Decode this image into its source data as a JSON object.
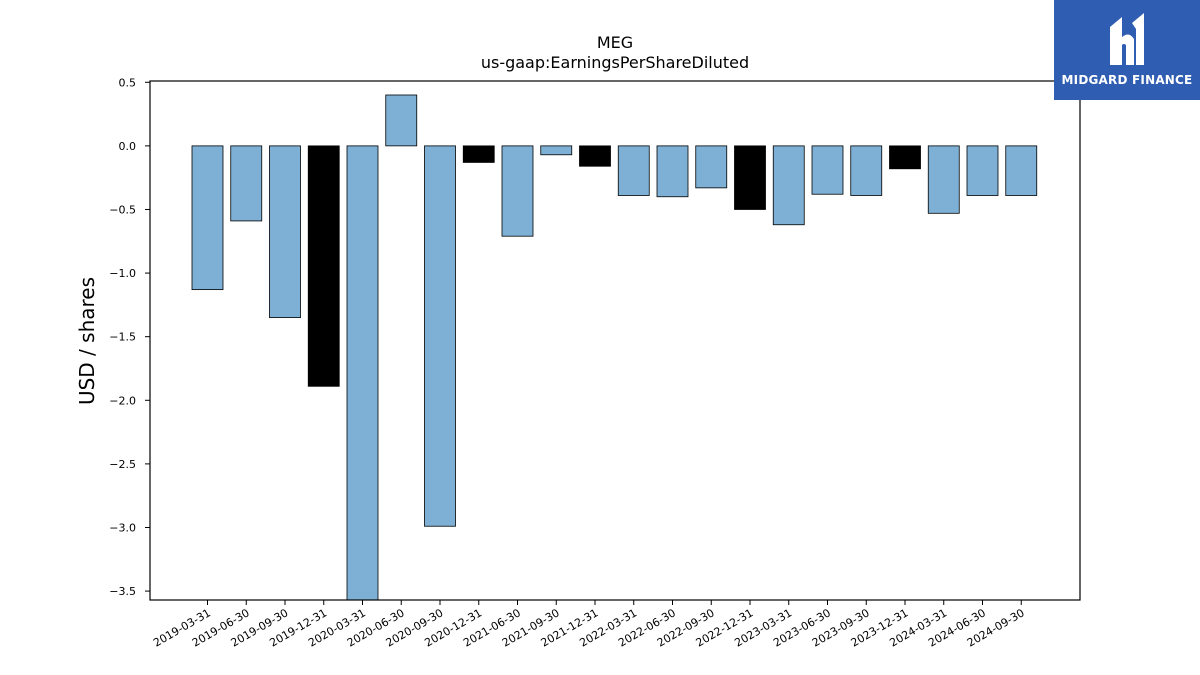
{
  "chart_data": {
    "type": "bar",
    "title": "MEG",
    "subtitle": "us-gaap:EarningsPerShareDiluted",
    "xlabel": "",
    "ylabel": "USD / shares",
    "ylim": [
      -3.57,
      0.51
    ],
    "yticks": [
      0.5,
      0.0,
      -0.5,
      -1.0,
      -1.5,
      -2.0,
      -2.5,
      -3.0,
      -3.5
    ],
    "ytick_labels": [
      "0.5",
      "0.0",
      "−0.5",
      "−1.0",
      "−1.5",
      "−2.0",
      "−2.5",
      "−3.0",
      "−3.5"
    ],
    "grid": false,
    "categories": [
      "2019-03-31",
      "2019-06-30",
      "2019-09-30",
      "2019-12-31",
      "2020-03-31",
      "2020-06-30",
      "2020-09-30",
      "2020-12-31",
      "2021-06-30",
      "2021-09-30",
      "2021-12-31",
      "2022-03-31",
      "2022-06-30",
      "2022-09-30",
      "2022-12-31",
      "2023-03-31",
      "2023-06-30",
      "2023-09-30",
      "2023-12-31",
      "2024-03-31",
      "2024-06-30",
      "2024-09-30"
    ],
    "values": [
      -1.13,
      -0.59,
      -1.35,
      -1.89,
      -3.62,
      0.4,
      -2.99,
      -0.13,
      -0.71,
      -0.07,
      -0.16,
      -0.39,
      -0.4,
      -0.33,
      -0.5,
      -0.62,
      -0.38,
      -0.39,
      -0.18,
      -0.53,
      -0.39,
      -0.39
    ],
    "highlight_year_end": [
      false,
      false,
      false,
      true,
      false,
      false,
      false,
      true,
      false,
      false,
      true,
      false,
      false,
      false,
      true,
      false,
      false,
      false,
      true,
      false,
      false,
      false
    ],
    "colors": {
      "quarter": "#7eb0d5",
      "year_end": "#000000",
      "edge": "#000000"
    }
  },
  "logo": {
    "text": "MIDGARD FINANCE",
    "background": "#2f5db1",
    "icon": "midgard-logo-icon"
  }
}
